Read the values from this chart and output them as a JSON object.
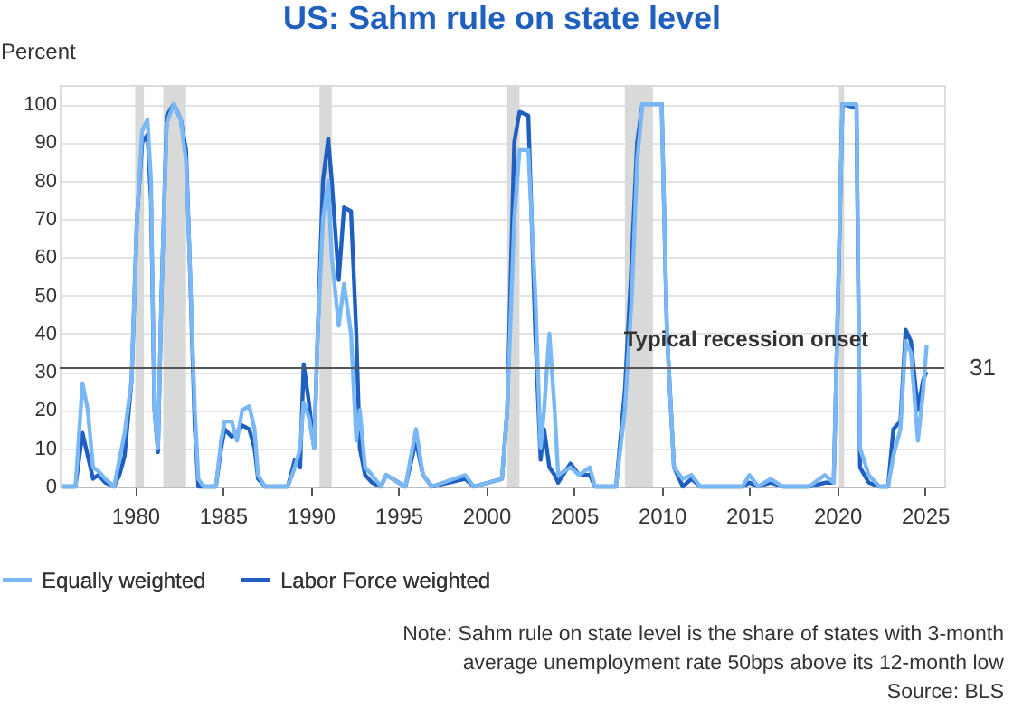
{
  "chart_data": {
    "type": "line",
    "title": "US: Sahm rule on state level",
    "ylabel": "Percent",
    "x": [
      1975.8,
      1976.6,
      1977.0,
      1977.3,
      1977.6,
      1977.9,
      1978.3,
      1978.8,
      1979.1,
      1979.4,
      1979.8,
      1980.1,
      1980.4,
      1980.7,
      1980.9,
      1981.1,
      1981.3,
      1981.5,
      1981.8,
      1982.2,
      1982.6,
      1982.9,
      1983.1,
      1983.4,
      1983.6,
      1983.9,
      1984.6,
      1984.9,
      1985.1,
      1985.5,
      1985.8,
      1986.1,
      1986.5,
      1986.8,
      1987.0,
      1987.4,
      1988.7,
      1989.1,
      1989.4,
      1989.6,
      1989.9,
      1990.2,
      1990.4,
      1990.7,
      1991.0,
      1991.2,
      1991.6,
      1991.9,
      1992.3,
      1992.6,
      1992.8,
      1993.1,
      1993.5,
      1994.0,
      1994.3,
      1995.4,
      1996.0,
      1996.4,
      1996.9,
      1998.8,
      1999.3,
      2000.9,
      2001.2,
      2001.6,
      2001.9,
      2002.4,
      2002.8,
      2003.1,
      2003.3,
      2003.6,
      2003.9,
      2004.1,
      2004.8,
      2005.3,
      2005.9,
      2006.2,
      2007.4,
      2007.9,
      2008.3,
      2008.6,
      2008.9,
      2010.0,
      2010.3,
      2010.7,
      2011.2,
      2011.7,
      2012.2,
      2014.6,
      2015.0,
      2015.5,
      2016.2,
      2016.9,
      2018.4,
      2019.3,
      2019.8,
      2020.05,
      2020.3,
      2021.1,
      2021.3,
      2021.8,
      2022.4,
      2022.9,
      2023.2,
      2023.6,
      2023.9,
      2024.2,
      2024.6,
      2024.9,
      2025.1
    ],
    "series": [
      {
        "name": "Equally weighted",
        "color": "#7ab8f5",
        "values": [
          0,
          0,
          27,
          20,
          5,
          4,
          2,
          0,
          7,
          14,
          28,
          70,
          93,
          96,
          80,
          20,
          10,
          50,
          95,
          100,
          96,
          85,
          60,
          20,
          2,
          0,
          0,
          12,
          17,
          17,
          12,
          20,
          21,
          15,
          3,
          0,
          0,
          5,
          10,
          22,
          18,
          10,
          40,
          70,
          80,
          60,
          42,
          53,
          40,
          12,
          20,
          5,
          3,
          0,
          3,
          0,
          15,
          3,
          0,
          3,
          0,
          2,
          20,
          70,
          88,
          88,
          50,
          10,
          20,
          40,
          20,
          3,
          5,
          3,
          5,
          0,
          0,
          20,
          50,
          85,
          100,
          100,
          40,
          5,
          2,
          3,
          0,
          0,
          3,
          0,
          2,
          0,
          0,
          3,
          1,
          50,
          100,
          100,
          10,
          3,
          0,
          0,
          8,
          15,
          38,
          35,
          12,
          25,
          37
        ]
      },
      {
        "name": "Labor Force weighted",
        "color": "#1f5fbf",
        "values": [
          0,
          0,
          14,
          8,
          2,
          3,
          1,
          0,
          3,
          8,
          28,
          70,
          90,
          92,
          75,
          20,
          9,
          50,
          97,
          100,
          96,
          88,
          60,
          15,
          0,
          0,
          0,
          10,
          15,
          13,
          14,
          16,
          15,
          10,
          2,
          0,
          0,
          7,
          5,
          32,
          22,
          10,
          40,
          80,
          91,
          80,
          54,
          73,
          72,
          40,
          10,
          3,
          1,
          0,
          3,
          0,
          12,
          3,
          0,
          2,
          0,
          2,
          20,
          90,
          98,
          97,
          40,
          7,
          15,
          5,
          3,
          1,
          6,
          3,
          3,
          0,
          0,
          25,
          60,
          90,
          100,
          100,
          40,
          5,
          0,
          2,
          0,
          0,
          1,
          0,
          1,
          0,
          0,
          1,
          1,
          50,
          100,
          99,
          5,
          1,
          0,
          0,
          15,
          17,
          41,
          38,
          20,
          28,
          30
        ]
      }
    ],
    "xlim": [
      1975.7,
      2026.1
    ],
    "xticks": [
      1980,
      1985,
      1990,
      1995,
      2000,
      2005,
      2010,
      2015,
      2020,
      2025
    ],
    "ylim": [
      0,
      105
    ],
    "yticks": [
      0,
      10,
      20,
      30,
      40,
      50,
      60,
      70,
      80,
      90,
      100
    ],
    "grid": "y",
    "legend": "bottom left",
    "marker": "none",
    "line_style": "solid",
    "bands": [
      {
        "axis": "x",
        "from": 1980.0,
        "to": 1980.5,
        "color": "#d9d9d9"
      },
      {
        "axis": "x",
        "from": 1981.6,
        "to": 1982.9,
        "color": "#d9d9d9"
      },
      {
        "axis": "x",
        "from": 1990.5,
        "to": 1991.2,
        "color": "#d9d9d9"
      },
      {
        "axis": "x",
        "from": 2001.2,
        "to": 2001.9,
        "color": "#d9d9d9"
      },
      {
        "axis": "x",
        "from": 2007.9,
        "to": 2009.5,
        "color": "#d9d9d9"
      },
      {
        "axis": "x",
        "from": 2020.1,
        "to": 2020.4,
        "color": "#d9d9d9"
      }
    ],
    "ref_lines": [
      {
        "axis": "y",
        "value": 31,
        "label": "Typical recession onset",
        "color": "#555555"
      }
    ],
    "annotations": [
      {
        "text": "31",
        "x": 2026.1,
        "y": 31
      },
      "Note: Sahm rule on state level is the share of states with 3-month",
      "average unemployment rate 50bps above its 12-month low",
      "Source: BLS"
    ]
  }
}
